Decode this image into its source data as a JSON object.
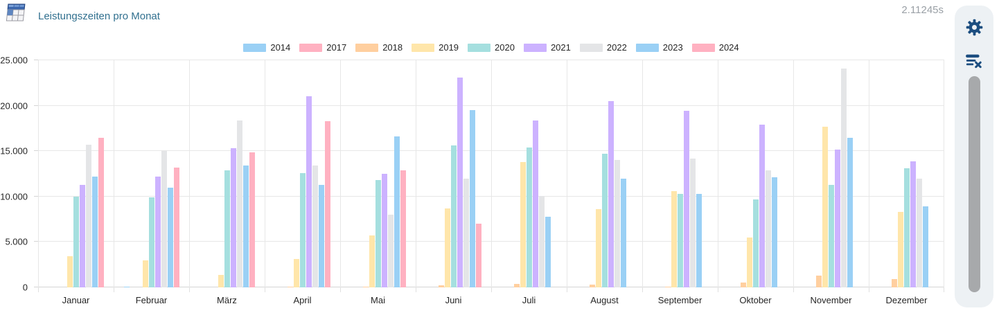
{
  "header": {
    "title": "Leistungszeiten pro Monat",
    "timer": "2.11245s",
    "title_color": "#31708f",
    "icon": "table-icon"
  },
  "side_panel": {
    "icon_color": "#1c4e80",
    "icons": [
      "settings-gear-icon",
      "clear-list-icon"
    ],
    "scrollbar": true
  },
  "chart_data": {
    "type": "bar",
    "title": "Leistungszeiten pro Monat",
    "legend_position": "top",
    "grid": true,
    "ylim": [
      0,
      25000
    ],
    "yticks": [
      "0",
      "5.000",
      "10.000",
      "15.000",
      "20.000",
      "25.000"
    ],
    "categories": [
      "Januar",
      "Februar",
      "März",
      "April",
      "Mai",
      "Juni",
      "Juli",
      "August",
      "September",
      "Oktober",
      "November",
      "Dezember"
    ],
    "series": [
      {
        "name": "2014",
        "color": "#9AD0F5",
        "values": [
          0,
          100,
          0,
          0,
          0,
          0,
          0,
          0,
          0,
          0,
          0,
          0
        ]
      },
      {
        "name": "2017",
        "color": "#FFB1C1",
        "values": [
          0,
          0,
          0,
          0,
          0,
          0,
          0,
          0,
          0,
          0,
          0,
          0
        ]
      },
      {
        "name": "2018",
        "color": "#FFCF9F",
        "values": [
          0,
          0,
          0,
          100,
          100,
          200,
          400,
          300,
          100,
          500,
          1300,
          900
        ]
      },
      {
        "name": "2019",
        "color": "#FFE6AA",
        "values": [
          3400,
          3000,
          1400,
          3100,
          5700,
          8700,
          13800,
          8600,
          10600,
          5500,
          17700,
          8300
        ]
      },
      {
        "name": "2020",
        "color": "#A5DFDF",
        "values": [
          10000,
          9900,
          12900,
          12600,
          11800,
          15600,
          15400,
          14700,
          10300,
          9700,
          11300,
          13100
        ]
      },
      {
        "name": "2021",
        "color": "#CCB2FF",
        "values": [
          11300,
          12200,
          15300,
          21000,
          12500,
          23100,
          18400,
          20500,
          19400,
          17900,
          15200,
          13900
        ]
      },
      {
        "name": "2022",
        "color": "#E4E5E7",
        "values": [
          15700,
          15000,
          18400,
          13400,
          8000,
          12000,
          10100,
          14000,
          14200,
          12900,
          24100,
          12000
        ]
      },
      {
        "name": "2023",
        "color": "#9AD0F5",
        "values": [
          12200,
          11000,
          13400,
          11300,
          16600,
          19500,
          7800,
          12000,
          10300,
          12100,
          16500,
          8900
        ]
      },
      {
        "name": "2024",
        "color": "#FFB1C1",
        "values": [
          16500,
          13200,
          14900,
          18300,
          12900,
          7000,
          0,
          0,
          0,
          0,
          0,
          0
        ]
      }
    ]
  }
}
